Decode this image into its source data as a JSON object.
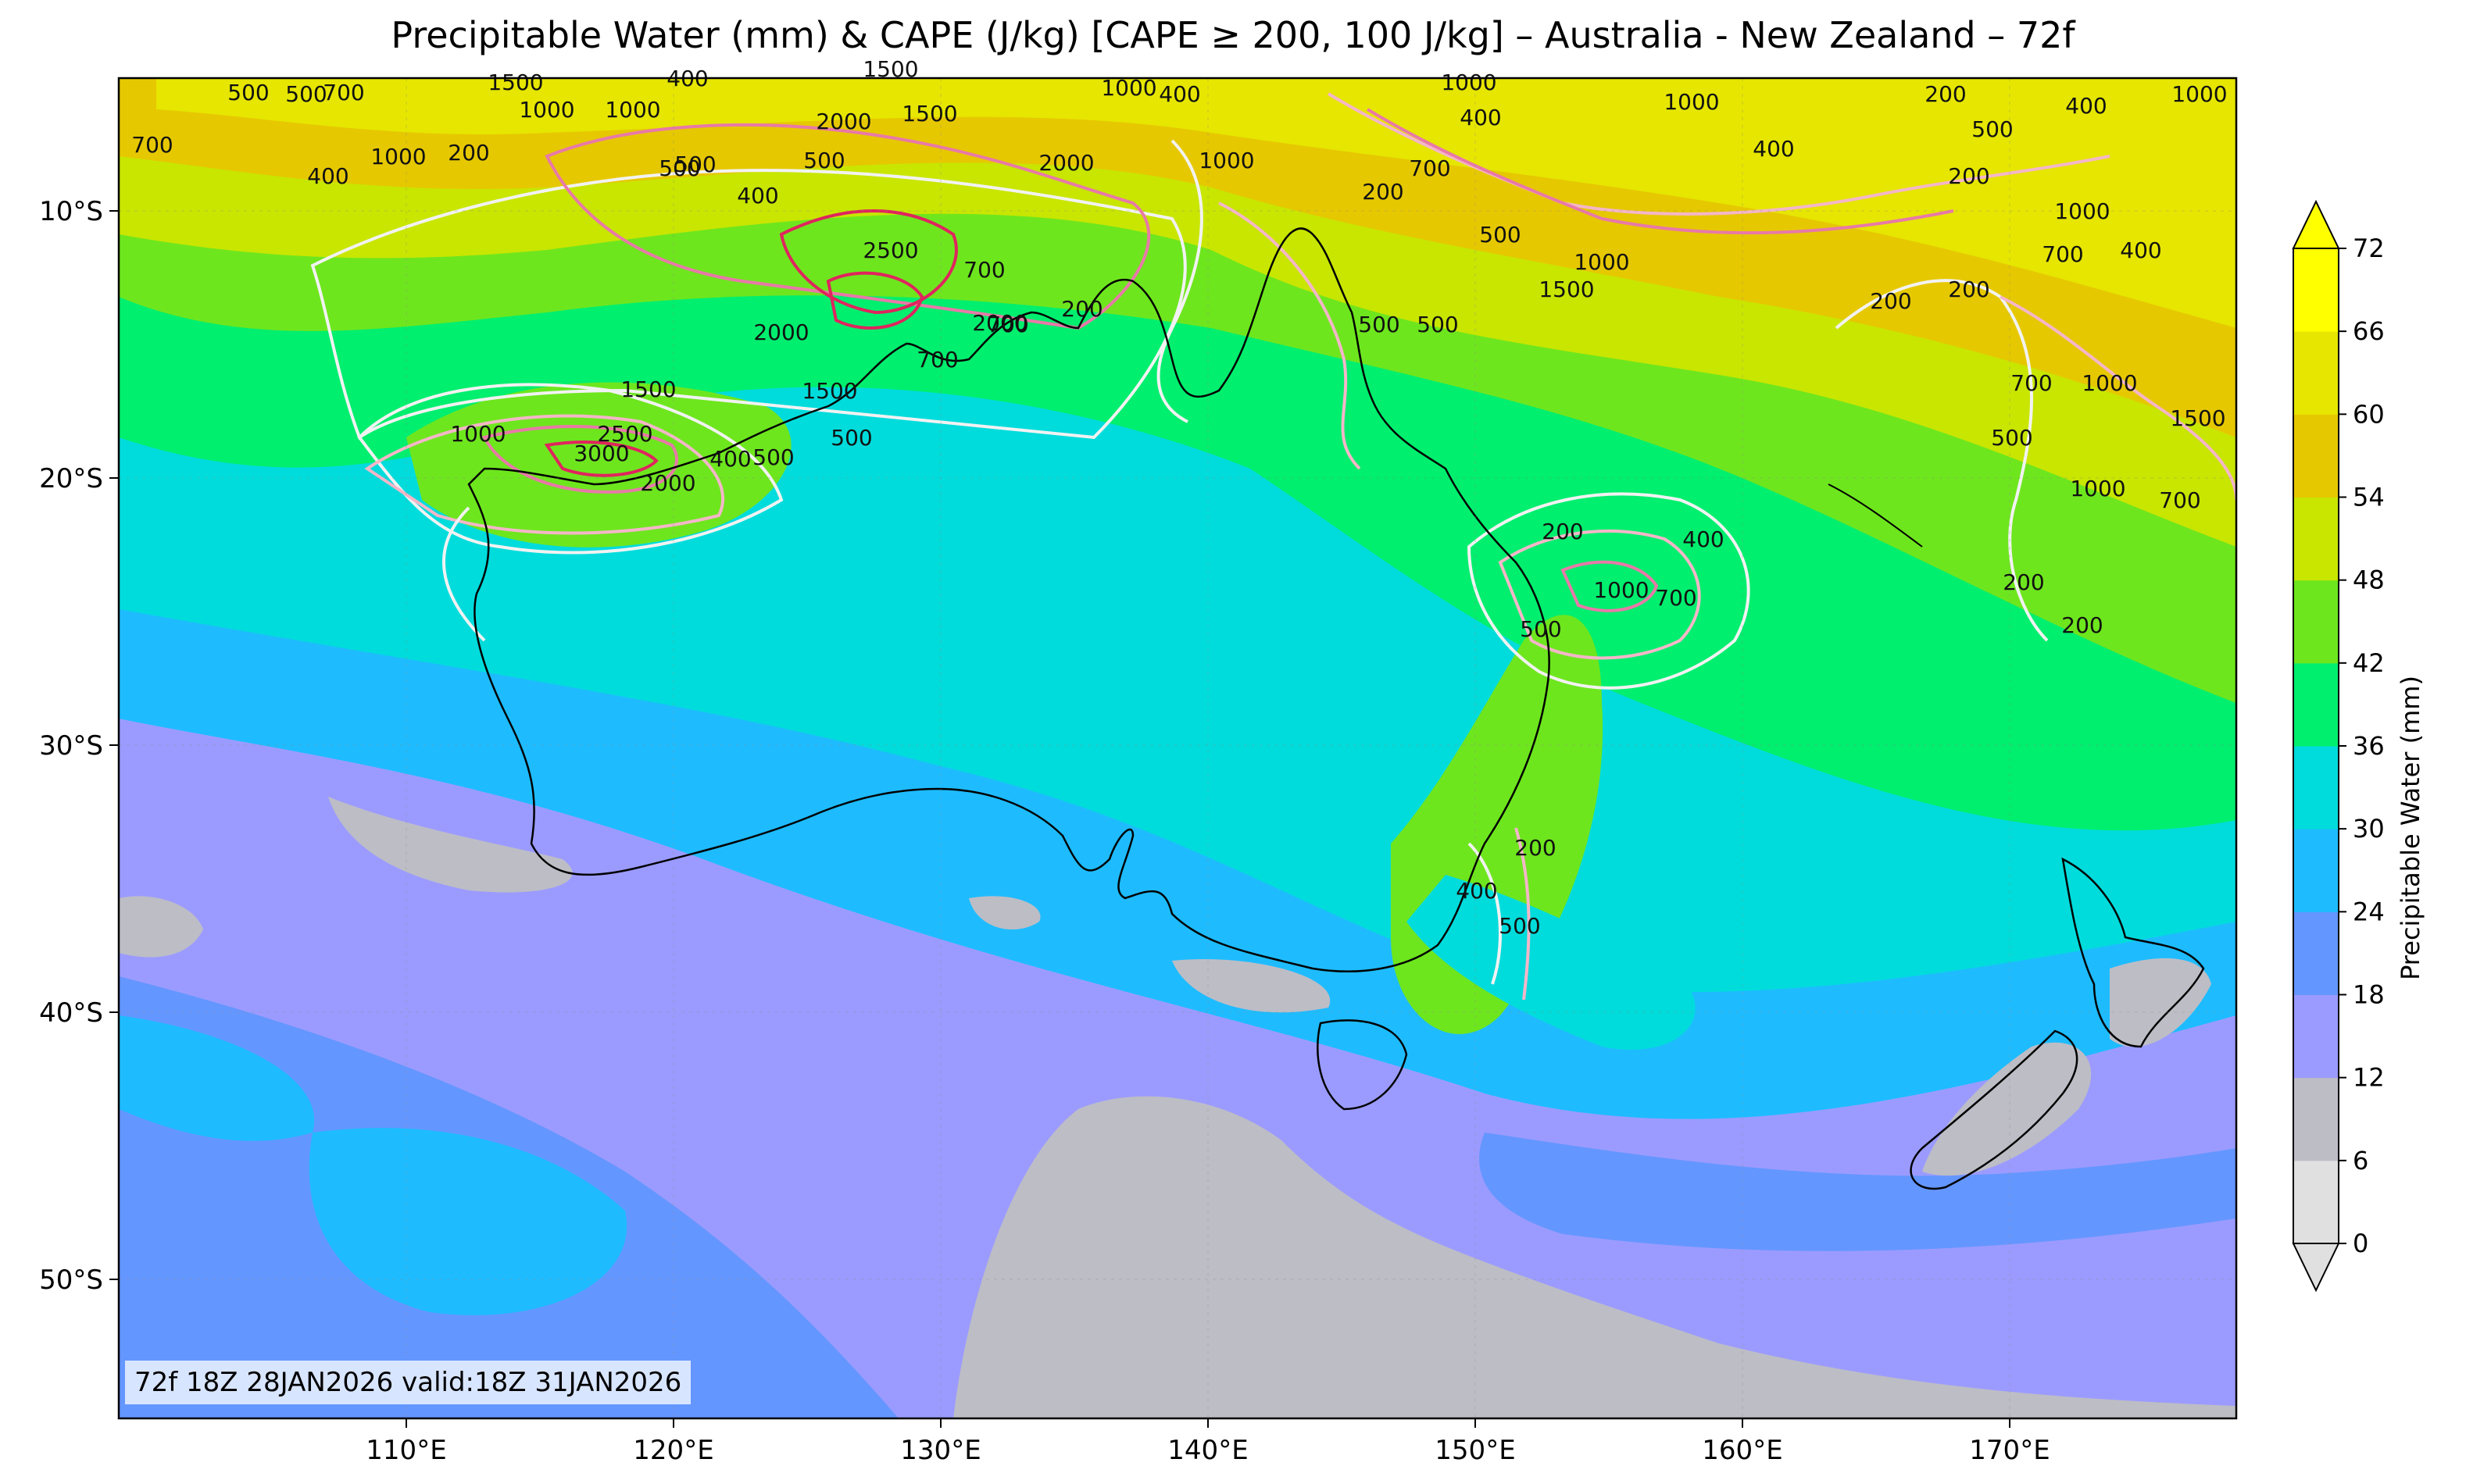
{
  "title": "Precipitable Water (mm) & CAPE (J/kg) [CAPE ≥ 200, 100 J/kg] – Australia - New Zealand – 72f",
  "valid_label": "72f 18Z 28JAN2026 valid:18Z 31JAN2026",
  "colorbar": {
    "label": "Precipitable Water (mm)",
    "ticks": [
      "0",
      "6",
      "12",
      "18",
      "24",
      "30",
      "36",
      "42",
      "48",
      "54",
      "60",
      "66",
      "72"
    ],
    "colors": [
      "#e0e0e0",
      "#bdbdc6",
      "#9b9bff",
      "#6496ff",
      "#1ebcff",
      "#00dcdc",
      "#00ef6e",
      "#6ee61e",
      "#c8e600",
      "#e6c800",
      "#e6e600",
      "#ffff00"
    ],
    "extend_low": "#e0e0e0",
    "extend_high": "#ffff00"
  },
  "axes": {
    "lon_labels": [
      "110°E",
      "120°E",
      "130°E",
      "140°E",
      "150°E",
      "160°E",
      "170°E"
    ],
    "lat_labels": [
      "10°S",
      "20°S",
      "30°S",
      "40°S",
      "50°S"
    ]
  },
  "cape_labels": [
    "500",
    "500",
    "700",
    "1500",
    "1000",
    "1000",
    "400",
    "200",
    "700",
    "500",
    "1000",
    "400",
    "500",
    "2000",
    "1500",
    "400",
    "1500",
    "2000",
    "2500",
    "500",
    "700",
    "2000",
    "700",
    "1000",
    "200",
    "2000",
    "1500",
    "1000",
    "1500",
    "500",
    "2500",
    "3000",
    "2000",
    "400",
    "500",
    "400",
    "700",
    "1000",
    "400",
    "200",
    "500",
    "1000",
    "700",
    "500",
    "500",
    "1000",
    "1000",
    "200",
    "500",
    "400",
    "1000",
    "400",
    "200",
    "1000",
    "400",
    "700",
    "1000",
    "700",
    "500",
    "1500",
    "1000",
    "700",
    "200",
    "200",
    "200",
    "400",
    "700",
    "1000",
    "500",
    "200",
    "400",
    "500",
    "1500",
    "200",
    "200"
  ],
  "legend_colors": {
    "cape_low": "#f4b6c8",
    "cape_mid": "#e879a8",
    "cape_high": "#e0245e",
    "cape_contour_white": "#f2f2f2",
    "coast": "#000000"
  }
}
